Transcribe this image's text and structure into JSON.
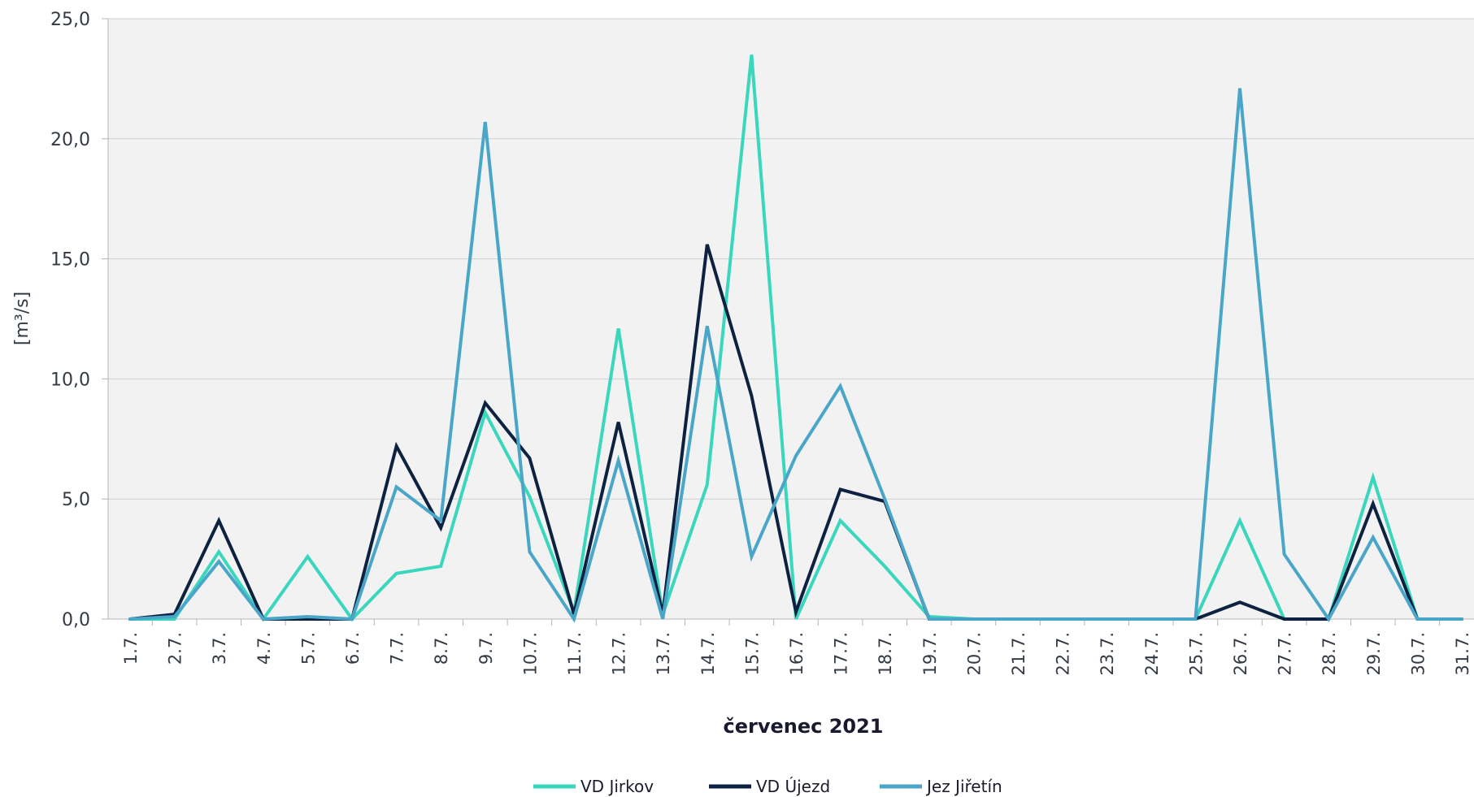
{
  "chart_data": {
    "type": "line",
    "xlabel": "červenec 2021",
    "ylabel": "[m³/s]",
    "ylim": [
      0,
      25
    ],
    "yticks": [
      "0,0",
      "5,0",
      "10,0",
      "15,0",
      "20,0",
      "25,0"
    ],
    "grid": true,
    "legend_position": "bottom",
    "categories": [
      "1.7.",
      "2.7.",
      "3.7.",
      "4.7.",
      "5.7.",
      "6.7.",
      "7.7.",
      "8.7.",
      "9.7.",
      "10.7.",
      "11.7.",
      "12.7.",
      "13.7.",
      "14.7.",
      "15.7.",
      "16.7.",
      "17.7.",
      "18.7.",
      "19.7.",
      "20.7.",
      "21.7.",
      "22.7.",
      "23.7.",
      "24.7.",
      "25.7.",
      "26.7.",
      "27.7.",
      "28.7.",
      "29.7.",
      "30.7.",
      "31.7."
    ],
    "series": [
      {
        "name": "VD Jirkov",
        "color": "#3ad6bd",
        "values": [
          0.0,
          0.0,
          2.8,
          0.0,
          2.6,
          0.0,
          1.9,
          2.2,
          8.6,
          5.1,
          0.3,
          12.1,
          0.2,
          5.6,
          23.5,
          0.0,
          4.1,
          2.2,
          0.1,
          0.0,
          0.0,
          0.0,
          0.0,
          0.0,
          0.0,
          4.1,
          0.0,
          0.0,
          5.9,
          0.0,
          0.0
        ]
      },
      {
        "name": "VD Újezd",
        "color": "#0d2240",
        "values": [
          0.0,
          0.2,
          4.1,
          0.0,
          0.0,
          0.0,
          7.2,
          3.8,
          9.0,
          6.7,
          0.2,
          8.2,
          0.2,
          15.6,
          9.3,
          0.3,
          5.4,
          4.9,
          0.0,
          0.0,
          0.0,
          0.0,
          0.0,
          0.0,
          0.0,
          0.7,
          0.0,
          0.0,
          4.8,
          0.0,
          0.0
        ]
      },
      {
        "name": "Jez Jiřetín",
        "color": "#4aa6c9",
        "values": [
          0.0,
          0.1,
          2.4,
          0.0,
          0.1,
          0.0,
          5.5,
          4.1,
          20.7,
          2.8,
          0.0,
          6.6,
          0.0,
          12.2,
          2.6,
          6.8,
          9.7,
          5.0,
          0.0,
          0.0,
          0.0,
          0.0,
          0.0,
          0.0,
          0.0,
          22.1,
          2.7,
          0.0,
          3.4,
          0.0,
          0.0
        ]
      }
    ]
  }
}
